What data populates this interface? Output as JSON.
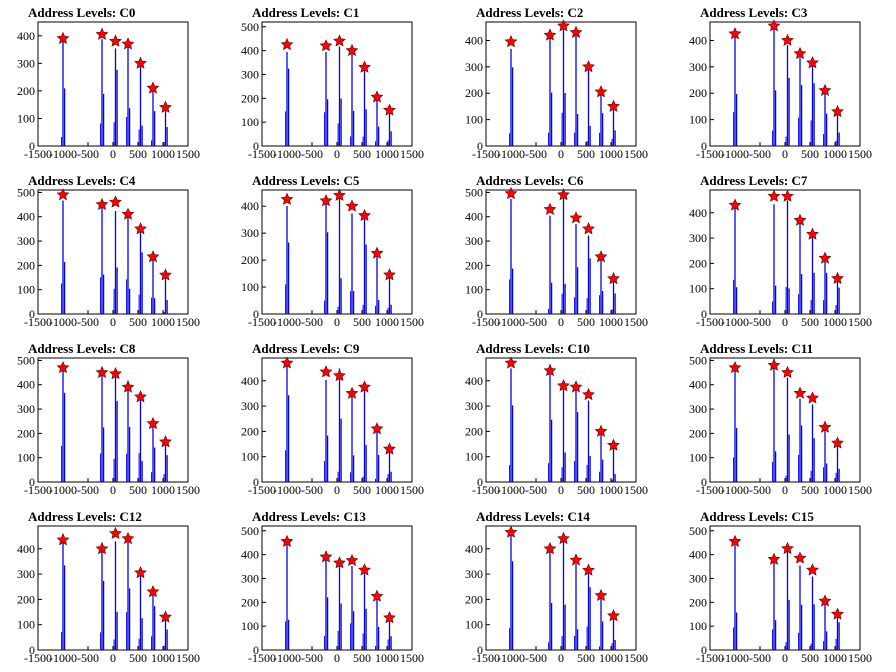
{
  "chart_data": [
    {
      "type": "bar",
      "title": "Address Levels: C0",
      "ylim": [
        0,
        450
      ],
      "xlim": [
        -1500,
        1500
      ],
      "yticks": [
        0,
        100,
        200,
        300,
        400
      ],
      "xticks": [
        -1500,
        -1000,
        -500,
        0,
        500,
        1000,
        1500
      ],
      "series": [
        {
          "x": [
            -1000,
            -220,
            50,
            300,
            550,
            800,
            1050
          ],
          "peaks": [
            390,
            405,
            380,
            370,
            300,
            210,
            140
          ]
        }
      ]
    },
    {
      "type": "bar",
      "title": "Address Levels: C1",
      "ylim": [
        0,
        520
      ],
      "xlim": [
        -1500,
        1500
      ],
      "yticks": [
        0,
        100,
        200,
        300,
        400,
        500
      ],
      "xticks": [
        -1500,
        -1000,
        -500,
        0,
        500,
        1000,
        1500
      ],
      "series": [
        {
          "x": [
            -1000,
            -220,
            50,
            300,
            550,
            800,
            1050
          ],
          "peaks": [
            425,
            420,
            440,
            400,
            330,
            205,
            150
          ]
        }
      ]
    },
    {
      "type": "bar",
      "title": "Address Levels: C2",
      "ylim": [
        0,
        470
      ],
      "xlim": [
        -1500,
        1500
      ],
      "yticks": [
        0,
        100,
        200,
        300,
        400
      ],
      "xticks": [
        -1500,
        -1000,
        -500,
        0,
        500,
        1000,
        1500
      ],
      "series": [
        {
          "x": [
            -1000,
            -220,
            50,
            300,
            550,
            800,
            1050
          ],
          "peaks": [
            395,
            420,
            455,
            430,
            300,
            205,
            150
          ]
        }
      ]
    },
    {
      "type": "bar",
      "title": "Address Levels: C3",
      "ylim": [
        0,
        470
      ],
      "xlim": [
        -1500,
        1500
      ],
      "yticks": [
        0,
        100,
        200,
        300,
        400
      ],
      "xticks": [
        -1500,
        -1000,
        -500,
        0,
        500,
        1000,
        1500
      ],
      "series": [
        {
          "x": [
            -1000,
            -220,
            50,
            300,
            550,
            800,
            1050
          ],
          "peaks": [
            425,
            455,
            400,
            350,
            315,
            210,
            130
          ]
        }
      ]
    },
    {
      "type": "bar",
      "title": "Address Levels: C4",
      "ylim": [
        0,
        510
      ],
      "xlim": [
        -1500,
        1500
      ],
      "yticks": [
        0,
        100,
        200,
        300,
        400,
        500
      ],
      "xticks": [
        -1500,
        -1000,
        -500,
        0,
        500,
        1000,
        1500
      ],
      "series": [
        {
          "x": [
            -1000,
            -220,
            50,
            300,
            550,
            800,
            1050
          ],
          "peaks": [
            490,
            450,
            460,
            410,
            350,
            235,
            160
          ]
        }
      ]
    },
    {
      "type": "bar",
      "title": "Address Levels: C5",
      "ylim": [
        0,
        460
      ],
      "xlim": [
        -1500,
        1500
      ],
      "yticks": [
        0,
        100,
        200,
        300,
        400
      ],
      "xticks": [
        -1500,
        -1000,
        -500,
        0,
        500,
        1000,
        1500
      ],
      "series": [
        {
          "x": [
            -1000,
            -220,
            50,
            300,
            550,
            800,
            1050
          ],
          "peaks": [
            425,
            420,
            440,
            400,
            365,
            225,
            145
          ]
        }
      ]
    },
    {
      "type": "bar",
      "title": "Address Levels: C6",
      "ylim": [
        0,
        510
      ],
      "xlim": [
        -1500,
        1500
      ],
      "yticks": [
        0,
        100,
        200,
        300,
        400,
        500
      ],
      "xticks": [
        -1500,
        -1000,
        -500,
        0,
        500,
        1000,
        1500
      ],
      "series": [
        {
          "x": [
            -1000,
            -220,
            50,
            300,
            550,
            800,
            1050
          ],
          "peaks": [
            495,
            430,
            490,
            395,
            350,
            235,
            145
          ]
        }
      ]
    },
    {
      "type": "bar",
      "title": "Address Levels: C7",
      "ylim": [
        0,
        490
      ],
      "xlim": [
        -1500,
        1500
      ],
      "yticks": [
        0,
        100,
        200,
        300,
        400
      ],
      "xticks": [
        -1500,
        -1000,
        -500,
        0,
        500,
        1000,
        1500
      ],
      "series": [
        {
          "x": [
            -1000,
            -220,
            50,
            300,
            550,
            800,
            1050
          ],
          "peaks": [
            430,
            465,
            465,
            370,
            315,
            220,
            140
          ]
        }
      ]
    },
    {
      "type": "bar",
      "title": "Address Levels: C8",
      "ylim": [
        0,
        510
      ],
      "xlim": [
        -1500,
        1500
      ],
      "yticks": [
        0,
        100,
        200,
        300,
        400,
        500
      ],
      "xticks": [
        -1500,
        -1000,
        -500,
        0,
        500,
        1000,
        1500
      ],
      "series": [
        {
          "x": [
            -1000,
            -220,
            50,
            300,
            550,
            800,
            1050
          ],
          "peaks": [
            470,
            450,
            445,
            390,
            350,
            240,
            165
          ]
        }
      ]
    },
    {
      "type": "bar",
      "title": "Address Levels: C9",
      "ylim": [
        0,
        490
      ],
      "xlim": [
        -1500,
        1500
      ],
      "yticks": [
        0,
        100,
        200,
        300,
        400
      ],
      "xticks": [
        -1500,
        -1000,
        -500,
        0,
        500,
        1000,
        1500
      ],
      "series": [
        {
          "x": [
            -1000,
            -220,
            50,
            300,
            550,
            800,
            1050
          ],
          "peaks": [
            470,
            435,
            420,
            350,
            375,
            210,
            130
          ]
        }
      ]
    },
    {
      "type": "bar",
      "title": "Address Levels: C10",
      "ylim": [
        0,
        490
      ],
      "xlim": [
        -1500,
        1500
      ],
      "yticks": [
        0,
        100,
        200,
        300,
        400
      ],
      "xticks": [
        -1500,
        -1000,
        -500,
        0,
        500,
        1000,
        1500
      ],
      "series": [
        {
          "x": [
            -1000,
            -220,
            50,
            300,
            550,
            800,
            1050
          ],
          "peaks": [
            470,
            440,
            380,
            375,
            345,
            200,
            145
          ]
        }
      ]
    },
    {
      "type": "bar",
      "title": "Address Levels: C11",
      "ylim": [
        0,
        510
      ],
      "xlim": [
        -1500,
        1500
      ],
      "yticks": [
        0,
        100,
        200,
        300,
        400,
        500
      ],
      "xticks": [
        -1500,
        -1000,
        -500,
        0,
        500,
        1000,
        1500
      ],
      "series": [
        {
          "x": [
            -1000,
            -220,
            50,
            300,
            550,
            800,
            1050
          ],
          "peaks": [
            470,
            480,
            450,
            365,
            345,
            225,
            160
          ]
        }
      ]
    },
    {
      "type": "bar",
      "title": "Address Levels: C12",
      "ylim": [
        0,
        490
      ],
      "xlim": [
        -1500,
        1500
      ],
      "yticks": [
        0,
        100,
        200,
        300,
        400
      ],
      "xticks": [
        -1500,
        -1000,
        -500,
        0,
        500,
        1000,
        1500
      ],
      "series": [
        {
          "x": [
            -1000,
            -220,
            50,
            300,
            550,
            800,
            1050
          ],
          "peaks": [
            435,
            400,
            460,
            440,
            305,
            230,
            130
          ]
        }
      ]
    },
    {
      "type": "bar",
      "title": "Address Levels: C13",
      "ylim": [
        0,
        520
      ],
      "xlim": [
        -1500,
        1500
      ],
      "yticks": [
        0,
        100,
        200,
        300,
        400,
        500
      ],
      "xticks": [
        -1500,
        -1000,
        -500,
        0,
        500,
        1000,
        1500
      ],
      "series": [
        {
          "x": [
            -1000,
            -220,
            50,
            300,
            550,
            800,
            1050
          ],
          "peaks": [
            455,
            390,
            365,
            375,
            335,
            225,
            135
          ]
        }
      ]
    },
    {
      "type": "bar",
      "title": "Address Levels: C14",
      "ylim": [
        0,
        490
      ],
      "xlim": [
        -1500,
        1500
      ],
      "yticks": [
        0,
        100,
        200,
        300,
        400
      ],
      "xticks": [
        -1500,
        -1000,
        -500,
        0,
        500,
        1000,
        1500
      ],
      "series": [
        {
          "x": [
            -1000,
            -220,
            50,
            300,
            550,
            800,
            1050
          ],
          "peaks": [
            465,
            400,
            440,
            355,
            315,
            215,
            135
          ]
        }
      ]
    },
    {
      "type": "bar",
      "title": "Address Levels: C15",
      "ylim": [
        0,
        520
      ],
      "xlim": [
        -1500,
        1500
      ],
      "yticks": [
        0,
        100,
        200,
        300,
        400,
        500
      ],
      "xticks": [
        -1500,
        -1000,
        -500,
        0,
        500,
        1000,
        1500
      ],
      "series": [
        {
          "x": [
            -1000,
            -220,
            50,
            300,
            550,
            800,
            1050
          ],
          "peaks": [
            455,
            380,
            425,
            385,
            335,
            205,
            150
          ]
        }
      ]
    }
  ],
  "colors": {
    "bar": "#0000ee",
    "marker": "#ff0000",
    "marker_outline": "#660000",
    "axis": "#000000"
  }
}
